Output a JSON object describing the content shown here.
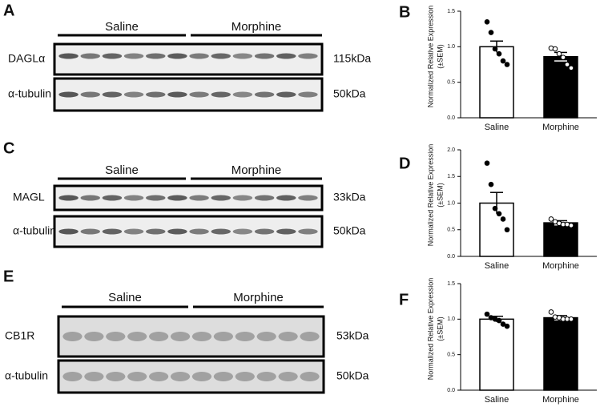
{
  "blots": [
    {
      "panel": "A",
      "groups": [
        "Saline",
        "Morphine"
      ],
      "rows": [
        {
          "label": "DAGLα",
          "size": "115kDa"
        },
        {
          "label": "α-tubulin",
          "size": "50kDa"
        }
      ]
    },
    {
      "panel": "C",
      "groups": [
        "Saline",
        "Morphine"
      ],
      "rows": [
        {
          "label": "MAGL",
          "size": "33kDa"
        },
        {
          "label": "α-tubulin",
          "size": "50kDa"
        }
      ]
    },
    {
      "panel": "E",
      "groups": [
        "Saline",
        "Morphine"
      ],
      "rows": [
        {
          "label": "CB1R",
          "size": "53kDa"
        },
        {
          "label": "α-tubulin",
          "size": "50kDa"
        }
      ]
    }
  ],
  "chart_data": [
    {
      "type": "bar",
      "panel": "B",
      "ylabel": [
        "Normalized Relative Expression",
        "(±SEM)"
      ],
      "categories": [
        "Saline",
        "Morphine"
      ],
      "values": [
        1.0,
        0.86
      ],
      "errors": [
        0.08,
        0.06
      ],
      "colors": [
        "#ffffff",
        "#000000"
      ],
      "points": [
        [
          1.35,
          1.2,
          0.97,
          0.9,
          0.8,
          0.75
        ],
        [
          0.98,
          0.97,
          0.9,
          0.85,
          0.75,
          0.7
        ]
      ],
      "point_colors": [
        "#000000",
        "#ffffff"
      ],
      "ylim": [
        0,
        1.5
      ],
      "yticks": [
        {
          "value": 0,
          "label": "0.0"
        },
        {
          "value": 0.5,
          "label": "0.5"
        },
        {
          "value": 1,
          "label": "1.0"
        },
        {
          "value": 1.5,
          "label": "1.5"
        }
      ]
    },
    {
      "type": "bar",
      "panel": "D",
      "ylabel": [
        "Normalized Relative Expression",
        "(±SEM)"
      ],
      "categories": [
        "Saline",
        "Morphine"
      ],
      "values": [
        1.0,
        0.63
      ],
      "errors": [
        0.2,
        0.04
      ],
      "colors": [
        "#ffffff",
        "#000000"
      ],
      "points": [
        [
          1.75,
          1.35,
          0.9,
          0.8,
          0.7,
          0.5
        ],
        [
          0.7,
          0.65,
          0.62,
          0.6,
          0.6,
          0.58
        ]
      ],
      "point_colors": [
        "#000000",
        "#ffffff"
      ],
      "ylim": [
        0,
        2
      ],
      "yticks": [
        {
          "value": 0,
          "label": "0.0"
        },
        {
          "value": 0.5,
          "label": "0.5"
        },
        {
          "value": 1,
          "label": "1.0"
        },
        {
          "value": 1.5,
          "label": "1.5"
        },
        {
          "value": 2,
          "label": "2.0"
        }
      ]
    },
    {
      "type": "bar",
      "panel": "F",
      "ylabel": [
        "Normalized Relative Expression",
        "(±SEM)"
      ],
      "categories": [
        "Saline",
        "Morphine"
      ],
      "values": [
        1.0,
        1.02
      ],
      "errors": [
        0.04,
        0.03
      ],
      "colors": [
        "#ffffff",
        "#000000"
      ],
      "points": [
        [
          1.07,
          1.02,
          1.0,
          0.98,
          0.93,
          0.9
        ],
        [
          1.1,
          1.03,
          1.02,
          1.0,
          1.0,
          1.0
        ]
      ],
      "point_colors": [
        "#000000",
        "#ffffff"
      ],
      "ylim": [
        0,
        1.5
      ],
      "yticks": [
        {
          "value": 0,
          "label": "0.0"
        },
        {
          "value": 0.5,
          "label": "0.5"
        },
        {
          "value": 1,
          "label": "1.0"
        },
        {
          "value": 1.5,
          "label": "1.5"
        }
      ]
    }
  ]
}
